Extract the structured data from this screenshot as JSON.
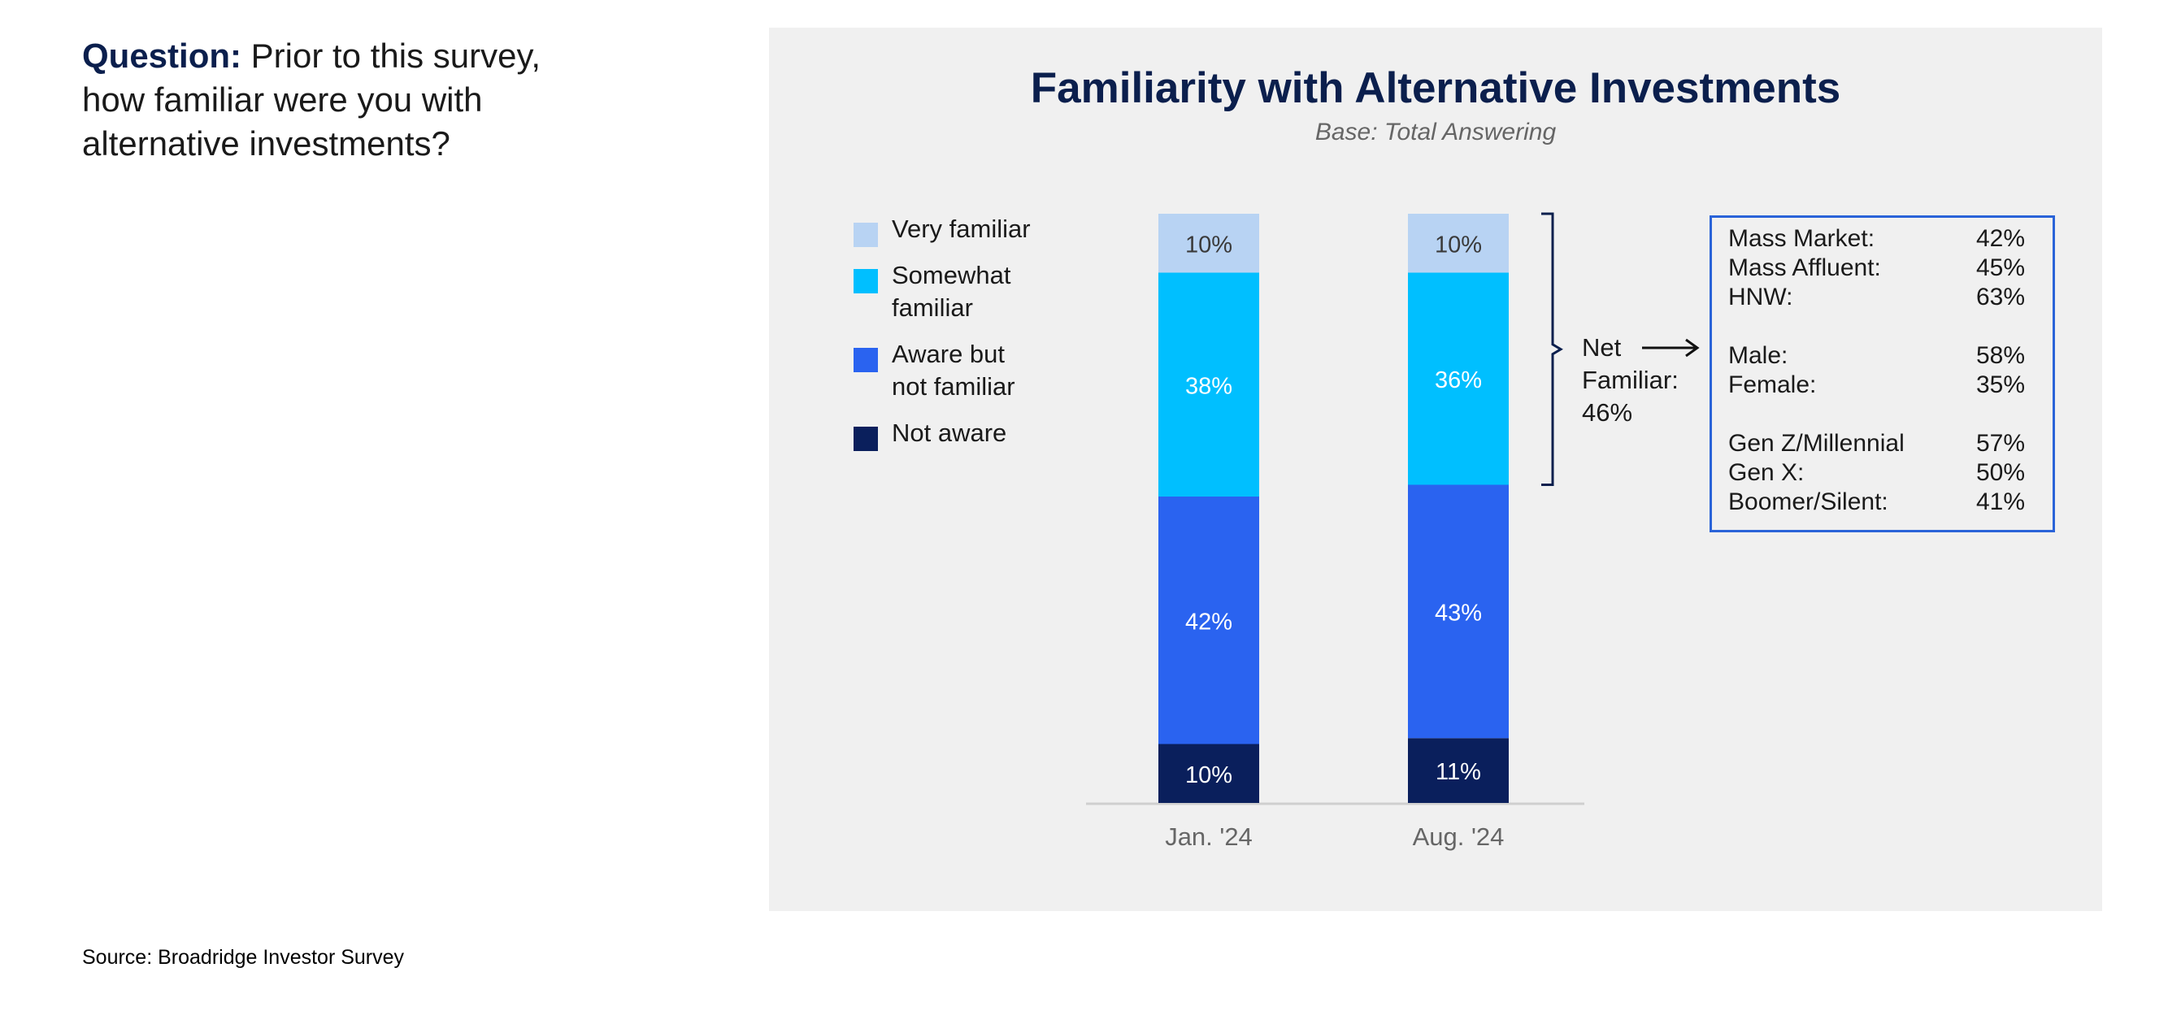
{
  "question": {
    "prefix": "Question:",
    "text": " Prior to this survey, how familiar were you with alternative investments?"
  },
  "source": "Source: Broadridge Investor Survey",
  "chart_data": {
    "type": "bar",
    "stacked": true,
    "title": "Familiarity with Alternative Investments",
    "subtitle": "Base: Total Answering",
    "categories": [
      "Jan. '24",
      "Aug. '24"
    ],
    "series": [
      {
        "name": "Not aware",
        "values": [
          10,
          11
        ],
        "color": "#0a1f5c"
      },
      {
        "name": "Aware but not familiar",
        "values": [
          42,
          43
        ],
        "color": "#2a63f0"
      },
      {
        "name": "Somewhat familiar",
        "values": [
          38,
          36
        ],
        "color": "#00bfff"
      },
      {
        "name": "Very familiar",
        "values": [
          10,
          10
        ],
        "color": "#b8d3f3"
      }
    ],
    "legend": [
      {
        "lines": [
          "Very familiar"
        ],
        "color": "#b8d3f3"
      },
      {
        "lines": [
          "Somewhat",
          "familiar"
        ],
        "color": "#00bfff"
      },
      {
        "lines": [
          "Aware but",
          "not familiar"
        ],
        "color": "#2a63f0"
      },
      {
        "lines": [
          "Not aware"
        ],
        "color": "#0a1f5c"
      }
    ],
    "value_suffix": "%",
    "ylim": [
      0,
      100
    ],
    "legend_position": "left",
    "grid": false,
    "annotation": {
      "lines": [
        "Net",
        "Familiar:",
        "46%"
      ]
    },
    "callout": {
      "groups": [
        [
          {
            "label": "Mass Market:",
            "value": "42%"
          },
          {
            "label": "Mass Affluent:",
            "value": "45%"
          },
          {
            "label": "HNW:",
            "value": "63%"
          }
        ],
        [
          {
            "label": "Male:",
            "value": "58%"
          },
          {
            "label": "Female:",
            "value": "35%"
          }
        ],
        [
          {
            "label": "Gen Z/Millennial",
            "value": "57%"
          },
          {
            "label": "Gen X:",
            "value": "50%"
          },
          {
            "label": "Boomer/Silent:",
            "value": "41%"
          }
        ]
      ]
    }
  }
}
